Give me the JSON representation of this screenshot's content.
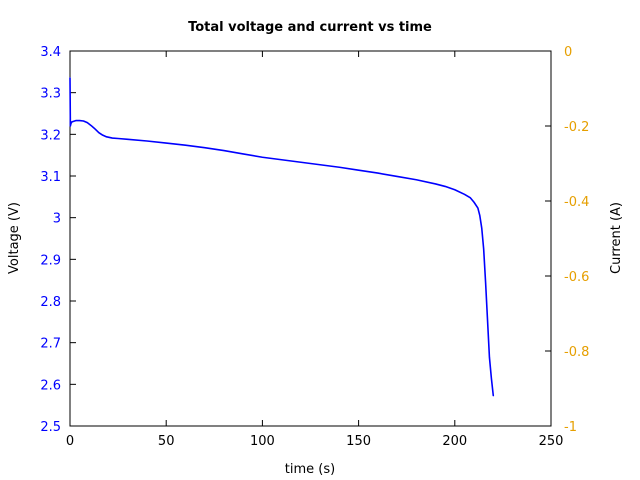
{
  "chart_data": {
    "type": "line",
    "title": "Total voltage and current vs time",
    "xlabel": "time (s)",
    "ylabel_left": "Voltage (V)",
    "ylabel_right": "Current (A)",
    "xlim": [
      0,
      250
    ],
    "ylim_left": [
      2.5,
      3.4
    ],
    "ylim_right": [
      -1,
      0
    ],
    "x_ticks": [
      "0",
      "50",
      "100",
      "150",
      "200",
      "250"
    ],
    "y_left_ticks": [
      "2.5",
      "2.6",
      "2.7",
      "2.8",
      "2.9",
      "3",
      "3.1",
      "3.2",
      "3.3",
      "3.4"
    ],
    "y_right_ticks": [
      "0",
      "-0.2",
      "-0.4",
      "-0.6",
      "-0.8",
      "-1"
    ],
    "grid": false,
    "legend": "none",
    "series": [
      {
        "axis": "left",
        "color": "#0000ff",
        "x": [
          0,
          0.2,
          0.5,
          1,
          3,
          5,
          7,
          9,
          11,
          13,
          15,
          17,
          19,
          22,
          25,
          30,
          40,
          50,
          60,
          70,
          80,
          90,
          100,
          110,
          120,
          130,
          140,
          150,
          160,
          170,
          180,
          190,
          195,
          200,
          205,
          208,
          210,
          212,
          213,
          214,
          215,
          216,
          217,
          218,
          219,
          220
        ],
        "y": [
          3.335,
          3.22,
          3.226,
          3.23,
          3.233,
          3.233,
          3.232,
          3.228,
          3.221,
          3.213,
          3.204,
          3.198,
          3.194,
          3.191,
          3.19,
          3.188,
          3.184,
          3.179,
          3.174,
          3.168,
          3.161,
          3.153,
          3.145,
          3.139,
          3.133,
          3.127,
          3.121,
          3.114,
          3.107,
          3.099,
          3.091,
          3.081,
          3.075,
          3.067,
          3.056,
          3.048,
          3.037,
          3.023,
          3.005,
          2.975,
          2.925,
          2.845,
          2.755,
          2.665,
          2.615,
          2.573
        ]
      }
    ]
  },
  "colors": {
    "left_axis": "#0000ff",
    "right_axis": "#e69f00",
    "series": "#0000ff",
    "frame": "#000000"
  }
}
